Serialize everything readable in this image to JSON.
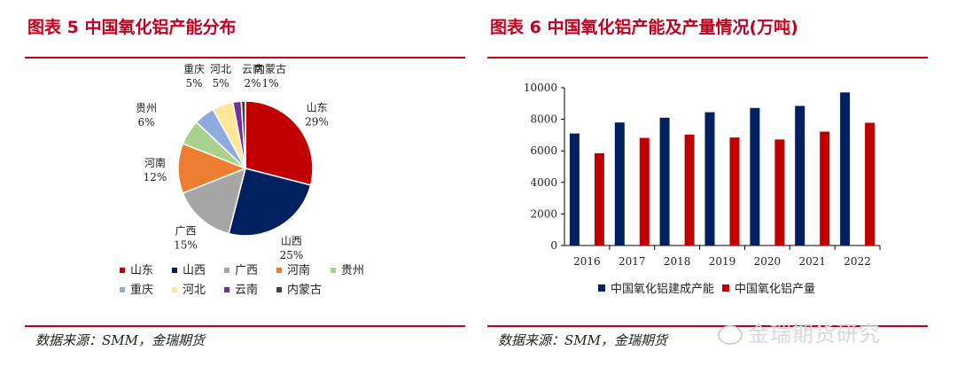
{
  "left": {
    "title": "图表 5  中国氧化铝产能分布",
    "source": "数据来源：SMM，金瑞期货"
  },
  "right": {
    "title": "图表 6 中国氧化铝产能及产量情况(万吨)",
    "source": "数据来源：SMM，金瑞期货"
  },
  "watermark": "金瑞期货研究",
  "chart_data": [
    {
      "type": "pie",
      "categories": [
        "山东",
        "山西",
        "广西",
        "河南",
        "贵州",
        "重庆",
        "河北",
        "云南",
        "内蒙古"
      ],
      "values": [
        29,
        25,
        15,
        12,
        6,
        5,
        5,
        2,
        1
      ],
      "labels": [
        "29%",
        "25%",
        "15%",
        "12%",
        "6%",
        "5%",
        "5%",
        "2%",
        "1%"
      ],
      "colors": [
        "#c00000",
        "#002060",
        "#a6a6a6",
        "#ed7d31",
        "#a9d18e",
        "#8faadc",
        "#ffe699",
        "#7030a0",
        "#404040"
      ],
      "legend_placement": "bottom"
    },
    {
      "type": "bar",
      "categories": [
        "2016",
        "2017",
        "2018",
        "2019",
        "2020",
        "2021",
        "2022"
      ],
      "series": [
        {
          "name": "中国氧化铝建成产能",
          "values": [
            7100,
            7800,
            8100,
            8450,
            8720,
            8850,
            9700
          ],
          "color": "#002060"
        },
        {
          "name": "中国氧化铝产量",
          "values": [
            5850,
            6820,
            7030,
            6850,
            6720,
            7220,
            7780
          ],
          "color": "#c00000"
        }
      ],
      "yticks": [
        "0",
        "2000",
        "4000",
        "6000",
        "8000",
        "10000"
      ],
      "ylim": [
        0,
        10000
      ],
      "grid": false,
      "legend_placement": "bottom"
    }
  ]
}
